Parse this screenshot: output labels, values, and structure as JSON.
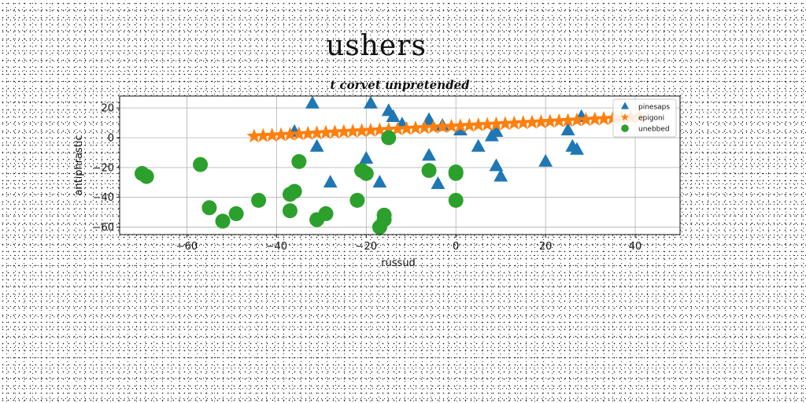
{
  "figure_title": "ushers",
  "chart_data": {
    "type": "scatter",
    "title": "t corvet unpretended",
    "xlabel": "russud",
    "ylabel": "antiphrastic",
    "xlim": [
      -75,
      50
    ],
    "ylim": [
      -65,
      28
    ],
    "xticks": [
      -60,
      -40,
      -20,
      0,
      20,
      40
    ],
    "yticks": [
      -60,
      -40,
      -20,
      0,
      20
    ],
    "grid": true,
    "legend_position": "top-right",
    "series": [
      {
        "name": "pinesaps",
        "marker": "triangle",
        "color": "#1f77b4",
        "points": [
          [
            -32,
            23
          ],
          [
            -36,
            4
          ],
          [
            -31,
            -6
          ],
          [
            -28,
            -30
          ],
          [
            -20,
            -14
          ],
          [
            -19,
            23
          ],
          [
            -17,
            -30
          ],
          [
            -15,
            18
          ],
          [
            -14,
            14
          ],
          [
            -12,
            9
          ],
          [
            -6,
            12
          ],
          [
            -6,
            -12
          ],
          [
            -4,
            -31
          ],
          [
            -3,
            8
          ],
          [
            1,
            5
          ],
          [
            5,
            -6
          ],
          [
            8,
            1
          ],
          [
            9,
            4
          ],
          [
            9,
            -19
          ],
          [
            10,
            -26
          ],
          [
            20,
            -16
          ],
          [
            25,
            5
          ],
          [
            26,
            -6
          ],
          [
            27,
            -8
          ],
          [
            28,
            14
          ]
        ]
      },
      {
        "name": "epigoni",
        "marker": "star",
        "color": "#ff7f0e",
        "points": [
          [
            -45.0,
            1.0
          ],
          [
            -43.0,
            1.3
          ],
          [
            -41.0,
            1.6
          ],
          [
            -39.0,
            1.9
          ],
          [
            -37.0,
            2.2
          ],
          [
            -35.0,
            2.5
          ],
          [
            -33.0,
            2.8
          ],
          [
            -31.0,
            3.1
          ],
          [
            -29.0,
            3.4
          ],
          [
            -27.0,
            3.7
          ],
          [
            -25.0,
            4.0
          ],
          [
            -23.0,
            4.3
          ],
          [
            -21.0,
            4.6
          ],
          [
            -19.0,
            4.9
          ],
          [
            -17.0,
            5.2
          ],
          [
            -15.0,
            5.5
          ],
          [
            -13.0,
            5.8
          ],
          [
            -11.0,
            6.1
          ],
          [
            -9.0,
            6.4
          ],
          [
            -7.0,
            6.7
          ],
          [
            -5.0,
            7.0
          ],
          [
            -3.0,
            7.3
          ],
          [
            -1.0,
            7.6
          ],
          [
            1.0,
            7.9
          ],
          [
            3.0,
            8.2
          ],
          [
            5.0,
            8.5
          ],
          [
            7.0,
            8.8
          ],
          [
            9.0,
            9.1
          ],
          [
            11.0,
            9.4
          ],
          [
            13.0,
            9.7
          ],
          [
            15.0,
            10.0
          ],
          [
            17.0,
            10.3
          ],
          [
            19.0,
            10.6
          ],
          [
            21.0,
            10.9
          ],
          [
            23.0,
            11.2
          ],
          [
            25.0,
            11.5
          ],
          [
            27.0,
            11.8
          ],
          [
            29.0,
            12.1
          ],
          [
            31.0,
            12.4
          ],
          [
            33.0,
            12.7
          ],
          [
            35.0,
            13.0
          ],
          [
            37.0,
            13.3
          ],
          [
            39.0,
            13.6
          ],
          [
            41.0,
            13.9
          ]
        ]
      },
      {
        "name": "unebbed",
        "marker": "circle",
        "color": "#2ca02c",
        "points": [
          [
            -70,
            -24
          ],
          [
            -69,
            -26
          ],
          [
            -57,
            -18
          ],
          [
            -55,
            -47
          ],
          [
            -52,
            -56
          ],
          [
            -49,
            -51
          ],
          [
            -44,
            -42
          ],
          [
            -37,
            -49
          ],
          [
            -37,
            -38
          ],
          [
            -36,
            -36
          ],
          [
            -35,
            -16
          ],
          [
            -31,
            -55
          ],
          [
            -29,
            -51
          ],
          [
            -22,
            -42
          ],
          [
            -21,
            -22
          ],
          [
            -20,
            -24
          ],
          [
            -17,
            -60
          ],
          [
            -16,
            -55
          ],
          [
            -16,
            -52
          ],
          [
            -15,
            0
          ],
          [
            -6,
            -22
          ],
          [
            0,
            -23
          ],
          [
            0,
            -24
          ],
          [
            0,
            -42
          ]
        ]
      }
    ]
  }
}
